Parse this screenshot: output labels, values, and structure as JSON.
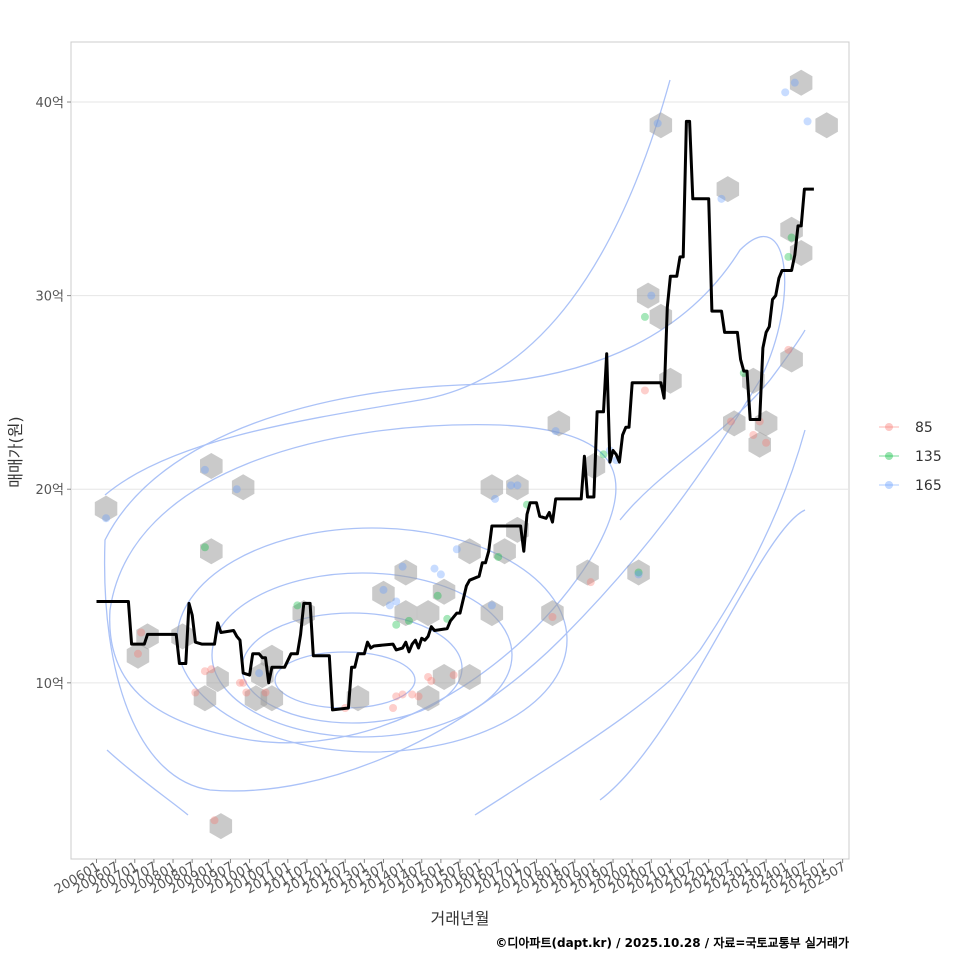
{
  "chart_data": {
    "type": "scatter",
    "title": "",
    "xlabel": "거래년월",
    "ylabel": "매매가(원)",
    "caption": "©디아파트(dapt.kr) / 2025.10.28 / 자료=국토교통부 실거래가",
    "x_ticks": [
      "200601",
      "200607",
      "200701",
      "200707",
      "200801",
      "200807",
      "200901",
      "200907",
      "201001",
      "201007",
      "201101",
      "201107",
      "201201",
      "201207",
      "201301",
      "201307",
      "201401",
      "201407",
      "201501",
      "201507",
      "201601",
      "201607",
      "201701",
      "201707",
      "201801",
      "201807",
      "201901",
      "201907",
      "202001",
      "202007",
      "202101",
      "202107",
      "202201",
      "202207",
      "202301",
      "202307",
      "202401",
      "202407",
      "202501",
      "202507"
    ],
    "y_ticks": [
      {
        "value": 10,
        "label": "10억"
      },
      {
        "value": 20,
        "label": "20억"
      },
      {
        "value": 30,
        "label": "30억"
      },
      {
        "value": 40,
        "label": "40억"
      }
    ],
    "ylim": [
      0.9,
      43.1
    ],
    "xlim_months": [
      -8,
      236
    ],
    "grid": "horizontal",
    "legend": {
      "position": "right",
      "entries": [
        {
          "name": "85",
          "color": "#F8766D"
        },
        {
          "name": "135",
          "color": "#00BA38"
        },
        {
          "name": "165",
          "color": "#619CFF"
        }
      ]
    },
    "hex_color": "#9E9E9E",
    "contour_color": "#619CFF",
    "median_line": [
      [
        0,
        14.2
      ],
      [
        10,
        14.2
      ],
      [
        11,
        12.0
      ],
      [
        15,
        12.0
      ],
      [
        16,
        12.5
      ],
      [
        25,
        12.5
      ],
      [
        26,
        11.0
      ],
      [
        28,
        11.0
      ],
      [
        29,
        14.1
      ],
      [
        30,
        13.5
      ],
      [
        31,
        12.1
      ],
      [
        33,
        12.0
      ],
      [
        37,
        12.0
      ],
      [
        38,
        13.1
      ],
      [
        39,
        12.6
      ],
      [
        43,
        12.7
      ],
      [
        44,
        12.4
      ],
      [
        45,
        12.2
      ],
      [
        46,
        10.5
      ],
      [
        48,
        10.4
      ],
      [
        49,
        11.5
      ],
      [
        51,
        11.5
      ],
      [
        52,
        11.3
      ],
      [
        53,
        11.3
      ],
      [
        54,
        10.0
      ],
      [
        55,
        10.8
      ],
      [
        59,
        10.8
      ],
      [
        61,
        11.5
      ],
      [
        63,
        11.5
      ],
      [
        64,
        12.5
      ],
      [
        65,
        14.1
      ],
      [
        67,
        14.1
      ],
      [
        68,
        11.4
      ],
      [
        73,
        11.4
      ],
      [
        74,
        8.6
      ],
      [
        79,
        8.7
      ],
      [
        80,
        10.8
      ],
      [
        81,
        10.8
      ],
      [
        82,
        11.5
      ],
      [
        84,
        11.5
      ],
      [
        85,
        12.1
      ],
      [
        86,
        11.8
      ],
      [
        87,
        11.9
      ],
      [
        93,
        12.0
      ],
      [
        94,
        11.7
      ],
      [
        96,
        11.8
      ],
      [
        97,
        12.1
      ],
      [
        98,
        11.6
      ],
      [
        99,
        12.0
      ],
      [
        100,
        12.2
      ],
      [
        101,
        11.8
      ],
      [
        102,
        12.3
      ],
      [
        103,
        12.2
      ],
      [
        104,
        12.4
      ],
      [
        105,
        12.9
      ],
      [
        106,
        12.7
      ],
      [
        110,
        12.8
      ],
      [
        111,
        13.2
      ],
      [
        113,
        13.6
      ],
      [
        114,
        13.6
      ],
      [
        116,
        15.0
      ],
      [
        117,
        15.3
      ],
      [
        120,
        15.5
      ],
      [
        121,
        16.2
      ],
      [
        122,
        16.2
      ],
      [
        123,
        16.8
      ],
      [
        124,
        18.1
      ],
      [
        133,
        18.1
      ],
      [
        134,
        16.8
      ],
      [
        135,
        18.7
      ],
      [
        136,
        19.3
      ],
      [
        138,
        19.3
      ],
      [
        139,
        18.6
      ],
      [
        141,
        18.5
      ],
      [
        142,
        18.8
      ],
      [
        143,
        18.3
      ],
      [
        144,
        19.5
      ],
      [
        152,
        19.5
      ],
      [
        153,
        21.7
      ],
      [
        154,
        19.6
      ],
      [
        156,
        19.6
      ],
      [
        157,
        24.0
      ],
      [
        159,
        24.0
      ],
      [
        160,
        27.0
      ],
      [
        161,
        21.4
      ],
      [
        162,
        22.0
      ],
      [
        163,
        21.8
      ],
      [
        164,
        21.4
      ],
      [
        165,
        22.8
      ],
      [
        166,
        23.2
      ],
      [
        167,
        23.2
      ],
      [
        168,
        25.5
      ],
      [
        177,
        25.5
      ],
      [
        178,
        24.7
      ],
      [
        179,
        29.4
      ],
      [
        180,
        31.0
      ],
      [
        182,
        31.0
      ],
      [
        183,
        32.0
      ],
      [
        184,
        32.0
      ],
      [
        185,
        39.0
      ],
      [
        186,
        39.0
      ],
      [
        187,
        35.0
      ],
      [
        192,
        35.0
      ],
      [
        193,
        29.2
      ],
      [
        196,
        29.2
      ],
      [
        197,
        28.1
      ],
      [
        201,
        28.1
      ],
      [
        202,
        26.7
      ],
      [
        203,
        26.1
      ],
      [
        204,
        26.1
      ],
      [
        205,
        23.6
      ],
      [
        208,
        23.6
      ],
      [
        209,
        27.3
      ],
      [
        210,
        28.1
      ],
      [
        211,
        28.4
      ],
      [
        212,
        29.8
      ],
      [
        213,
        30.0
      ],
      [
        214,
        30.9
      ],
      [
        215,
        31.3
      ],
      [
        218,
        31.3
      ],
      [
        219,
        32.1
      ],
      [
        220,
        33.6
      ],
      [
        221,
        33.6
      ],
      [
        222,
        35.5
      ],
      [
        225,
        35.5
      ]
    ],
    "series": [
      {
        "name": "85",
        "color": "#F8766D",
        "points": [
          [
            13,
            11.5
          ],
          [
            14,
            12.6
          ],
          [
            31,
            9.5
          ],
          [
            34,
            10.6
          ],
          [
            36,
            10.7
          ],
          [
            37,
            2.9
          ],
          [
            45,
            10.0
          ],
          [
            46,
            10.0
          ],
          [
            47,
            9.5
          ],
          [
            53,
            9.5
          ],
          [
            78,
            8.7
          ],
          [
            93,
            8.7
          ],
          [
            94,
            9.3
          ],
          [
            96,
            9.4
          ],
          [
            99,
            9.4
          ],
          [
            101,
            9.3
          ],
          [
            104,
            10.3
          ],
          [
            105,
            10.1
          ],
          [
            112,
            10.4
          ],
          [
            143,
            13.4
          ],
          [
            155,
            15.2
          ],
          [
            172,
            25.1
          ],
          [
            199,
            23.5
          ],
          [
            206,
            22.8
          ],
          [
            208,
            23.5
          ],
          [
            210,
            22.4
          ],
          [
            217,
            27.2
          ]
        ]
      },
      {
        "name": "135",
        "color": "#00BA38",
        "points": [
          [
            34,
            17.0
          ],
          [
            63,
            14.0
          ],
          [
            94,
            13.0
          ],
          [
            98,
            13.2
          ],
          [
            107,
            14.5
          ],
          [
            110,
            13.3
          ],
          [
            126,
            16.5
          ],
          [
            135,
            19.2
          ],
          [
            159,
            21.8
          ],
          [
            170,
            15.7
          ],
          [
            172,
            28.9
          ],
          [
            203,
            26.0
          ],
          [
            217,
            32.0
          ],
          [
            218,
            33.0
          ]
        ]
      },
      {
        "name": "165",
        "color": "#619CFF",
        "points": [
          [
            3,
            18.5
          ],
          [
            34,
            21.0
          ],
          [
            44,
            20.0
          ],
          [
            51,
            10.5
          ],
          [
            90,
            14.8
          ],
          [
            92,
            14.0
          ],
          [
            94,
            14.2
          ],
          [
            96,
            16.0
          ],
          [
            106,
            15.9
          ],
          [
            108,
            15.6
          ],
          [
            113,
            16.9
          ],
          [
            124,
            14.0
          ],
          [
            125,
            19.5
          ],
          [
            130,
            20.2
          ],
          [
            132,
            20.2
          ],
          [
            144,
            23.0
          ],
          [
            161,
            22.0
          ],
          [
            163,
            21.5
          ],
          [
            170,
            15.6
          ],
          [
            174,
            30.0
          ],
          [
            176,
            38.9
          ],
          [
            196,
            35.0
          ],
          [
            216,
            40.5
          ],
          [
            219,
            41.0
          ],
          [
            223,
            39.0
          ]
        ]
      }
    ],
    "hexbins": [
      [
        3,
        19.0
      ],
      [
        13,
        11.4
      ],
      [
        16,
        12.4
      ],
      [
        27,
        12.4
      ],
      [
        34,
        9.2
      ],
      [
        36,
        21.2
      ],
      [
        36,
        16.8
      ],
      [
        38,
        10.2
      ],
      [
        39,
        2.6
      ],
      [
        46,
        20.1
      ],
      [
        50,
        9.2
      ],
      [
        52,
        10.4
      ],
      [
        55,
        9.2
      ],
      [
        55,
        11.3
      ],
      [
        65,
        13.6
      ],
      [
        82,
        9.2
      ],
      [
        90,
        14.6
      ],
      [
        97,
        15.7
      ],
      [
        97,
        13.6
      ],
      [
        104,
        9.2
      ],
      [
        104,
        13.6
      ],
      [
        109,
        14.7
      ],
      [
        109,
        10.3
      ],
      [
        117,
        16.8
      ],
      [
        117,
        10.3
      ],
      [
        124,
        13.6
      ],
      [
        124,
        20.1
      ],
      [
        128,
        16.8
      ],
      [
        132,
        20.1
      ],
      [
        132,
        17.9
      ],
      [
        143,
        13.6
      ],
      [
        145,
        23.4
      ],
      [
        154,
        15.7
      ],
      [
        156,
        21.2
      ],
      [
        170,
        15.7
      ],
      [
        173,
        30.0
      ],
      [
        177,
        28.9
      ],
      [
        180,
        25.6
      ],
      [
        177,
        38.8
      ],
      [
        198,
        35.5
      ],
      [
        200,
        23.4
      ],
      [
        206,
        25.6
      ],
      [
        208,
        22.3
      ],
      [
        210,
        23.4
      ],
      [
        218,
        26.7
      ],
      [
        218,
        33.4
      ],
      [
        221,
        32.2
      ],
      [
        221,
        41.0
      ],
      [
        229,
        38.8
      ]
    ]
  }
}
